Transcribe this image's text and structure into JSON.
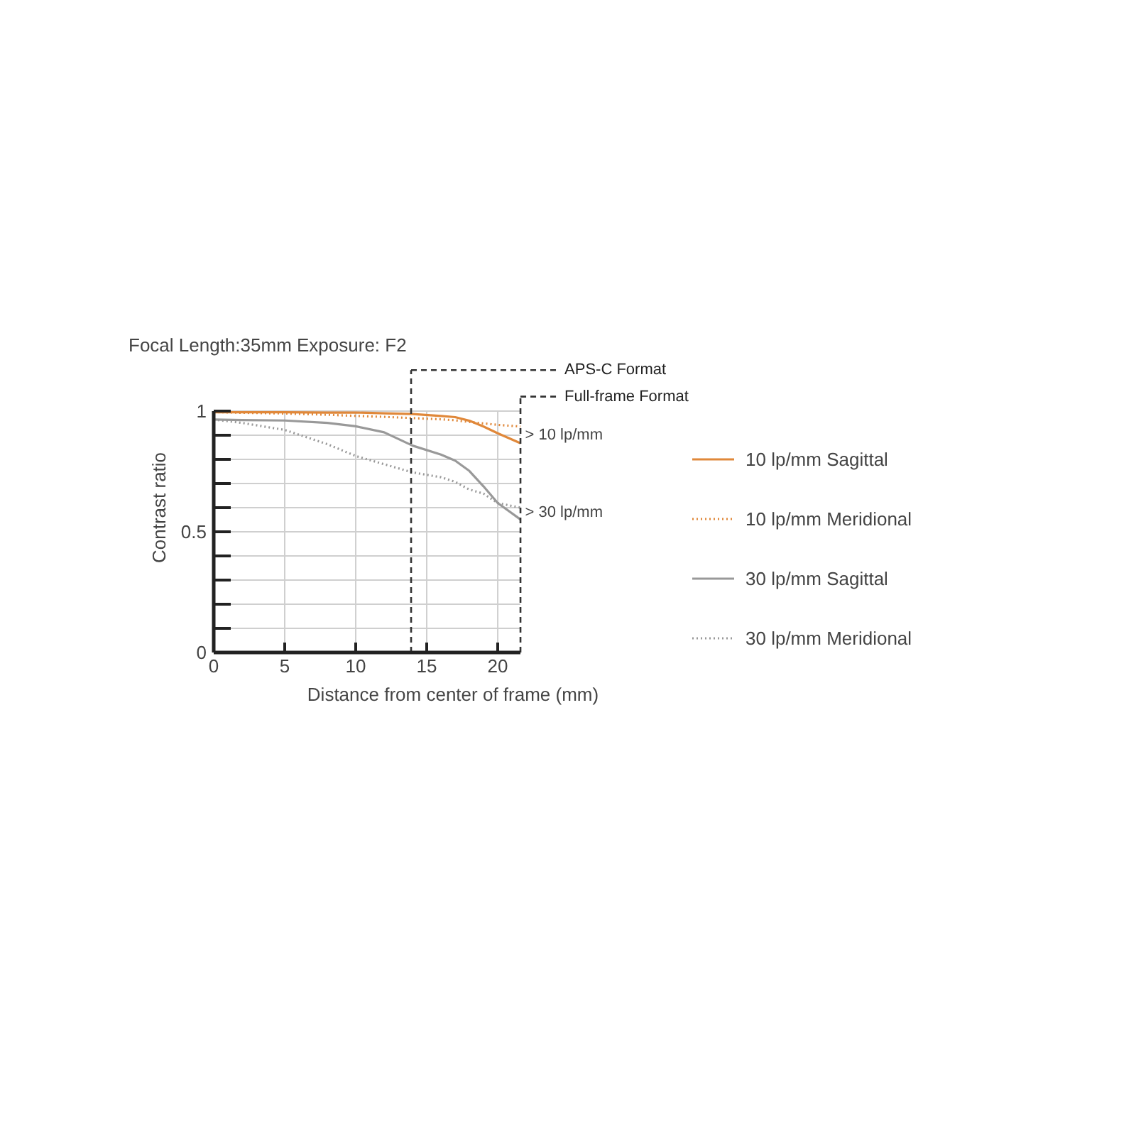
{
  "chart_data": {
    "type": "line",
    "title": "Focal Length:35mm   Exposure: F2",
    "xlabel": "Distance from center of frame (mm)",
    "ylabel": "Contrast ratio",
    "xlim": [
      0,
      21.6
    ],
    "ylim": [
      0,
      1
    ],
    "xticks": [
      0,
      5,
      10,
      15,
      20
    ],
    "yticks": [
      0,
      {
        "value": 0.1,
        "label": null
      },
      {
        "value": 0.2,
        "label": null
      },
      {
        "value": 0.3,
        "label": null
      },
      {
        "value": 0.4,
        "label": null
      },
      0.5,
      {
        "value": 0.6,
        "label": null
      },
      {
        "value": 0.7,
        "label": null
      },
      {
        "value": 0.8,
        "label": null
      },
      {
        "value": 0.9,
        "label": null
      },
      1
    ],
    "grid": true,
    "legend": "right",
    "marker": "none",
    "x": [
      0,
      2,
      5,
      8,
      10,
      12,
      14,
      16,
      17,
      18,
      19,
      20,
      21.6
    ],
    "series": [
      {
        "name": "10 lp/mm Sagittal",
        "color": "#e0883a",
        "line_style": "solid",
        "values": [
          0.995,
          0.995,
          0.995,
          0.994,
          0.994,
          0.991,
          0.988,
          0.98,
          0.975,
          0.96,
          0.936,
          0.908,
          0.867
        ]
      },
      {
        "name": "10 lp/mm Meridional",
        "color": "#e0883a",
        "line_style": "dotted",
        "values": [
          0.996,
          0.993,
          0.99,
          0.985,
          0.98,
          0.976,
          0.971,
          0.966,
          0.962,
          0.955,
          0.949,
          0.943,
          0.936
        ]
      },
      {
        "name": "30 lp/mm Sagittal",
        "color": "#999999",
        "line_style": "solid",
        "values": [
          0.965,
          0.963,
          0.961,
          0.951,
          0.937,
          0.912,
          0.857,
          0.82,
          0.795,
          0.752,
          0.688,
          0.619,
          0.551
        ]
      },
      {
        "name": "30 lp/mm Meridional",
        "color": "#999999",
        "line_style": "dotted",
        "values": [
          0.965,
          0.951,
          0.922,
          0.863,
          0.814,
          0.78,
          0.746,
          0.726,
          0.707,
          0.675,
          0.658,
          0.619,
          0.6
        ]
      }
    ],
    "ref_lines": [
      {
        "axis": "x",
        "value": 13.9,
        "label": "APS-C Format",
        "line_style": "dashed",
        "color": "#333333"
      },
      {
        "axis": "x",
        "value": 21.6,
        "label": "Full-frame Format",
        "line_style": "dashed",
        "color": "#333333"
      }
    ],
    "annotations": [
      {
        "text": "> 10 lp/mm",
        "x": 21.6,
        "y": 0.9
      },
      {
        "text": "> 30 lp/mm",
        "x": 21.6,
        "y": 0.58
      }
    ]
  }
}
